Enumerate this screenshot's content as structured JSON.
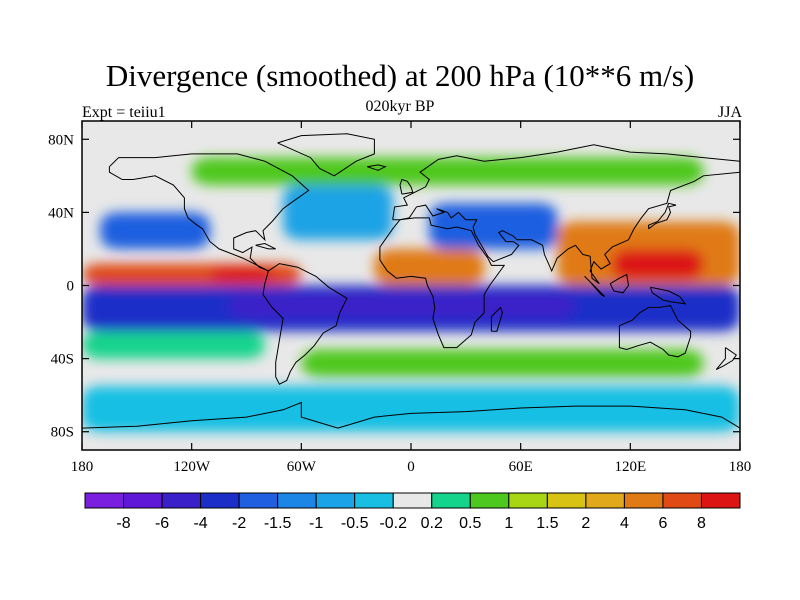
{
  "title": "Divergence (smoothed) at 200 hPa (10**6 m/s)",
  "subtitle": "020kyr BP",
  "left_label": "Expt = teiiu1",
  "right_label": "JJA",
  "map": {
    "lon_range": [
      -180,
      180
    ],
    "lat_range": [
      -90,
      90
    ],
    "background_color": "#e8e8e8",
    "coastlines": true
  },
  "axes": {
    "x_ticks": [
      {
        "value": -180,
        "label": "180"
      },
      {
        "value": -120,
        "label": "120W"
      },
      {
        "value": -60,
        "label": "60W"
      },
      {
        "value": 0,
        "label": "0"
      },
      {
        "value": 60,
        "label": "60E"
      },
      {
        "value": 120,
        "label": "120E"
      },
      {
        "value": 180,
        "label": "180"
      }
    ],
    "y_ticks": [
      {
        "value": 80,
        "label": "80N"
      },
      {
        "value": 40,
        "label": "40N"
      },
      {
        "value": 0,
        "label": "0"
      },
      {
        "value": -40,
        "label": "40S"
      },
      {
        "value": -80,
        "label": "80S"
      }
    ]
  },
  "colorbar": {
    "colors": [
      "#7a1fe0",
      "#6018d8",
      "#3a20c8",
      "#1c2ec8",
      "#1f5fe0",
      "#1c86e6",
      "#1aa3e6",
      "#19bfe3",
      "#e8e8e8",
      "#14d48c",
      "#4dc81e",
      "#a8d614",
      "#d8c214",
      "#e0a81a",
      "#e07a14",
      "#e04a14",
      "#dc1414"
    ],
    "labels": [
      "-8",
      "-6",
      "-4",
      "-2",
      "-1.5",
      "-1",
      "-0.5",
      "-0.2",
      "0.2",
      "0.5",
      "1",
      "1.5",
      "2",
      "4",
      "6",
      "8"
    ]
  },
  "field_regions": [
    {
      "name": "equatorial-negative-band",
      "color": "#1c2ec8",
      "lon": [
        -180,
        180
      ],
      "lat": [
        -25,
        0
      ]
    },
    {
      "name": "equatorial-core-negative",
      "color": "#3a20c8",
      "lon": [
        -100,
        90
      ],
      "lat": [
        -18,
        -4
      ]
    },
    {
      "name": "west-pacific-positive",
      "color": "#e07a14",
      "lon": [
        80,
        180
      ],
      "lat": [
        0,
        35
      ]
    },
    {
      "name": "west-pacific-core",
      "color": "#dc1414",
      "lon": [
        110,
        160
      ],
      "lat": [
        3,
        20
      ]
    },
    {
      "name": "east-pacific-positive",
      "color": "#e04a14",
      "lon": [
        -180,
        -60
      ],
      "lat": [
        0,
        12
      ]
    },
    {
      "name": "east-pacific-core",
      "color": "#dc1414",
      "lon": [
        -110,
        -75
      ],
      "lat": [
        2,
        10
      ]
    },
    {
      "name": "africa-positive",
      "color": "#e07a14",
      "lon": [
        -20,
        40
      ],
      "lat": [
        0,
        20
      ]
    },
    {
      "name": "north-pacific-negative",
      "color": "#1f5fe0",
      "lon": [
        -170,
        -110
      ],
      "lat": [
        20,
        40
      ]
    },
    {
      "name": "north-atlantic-negative",
      "color": "#1aa3e6",
      "lon": [
        -70,
        -10
      ],
      "lat": [
        25,
        55
      ]
    },
    {
      "name": "asia-negative",
      "color": "#1f5fe0",
      "lon": [
        10,
        80
      ],
      "lat": [
        20,
        45
      ]
    },
    {
      "name": "southern-ocean-light",
      "color": "#19bfe3",
      "lon": [
        -180,
        180
      ],
      "lat": [
        -80,
        -55
      ]
    },
    {
      "name": "southern-mid-green",
      "color": "#4dc81e",
      "lon": [
        -60,
        160
      ],
      "lat": [
        -50,
        -35
      ]
    },
    {
      "name": "south-pacific-green",
      "color": "#14d48c",
      "lon": [
        -180,
        -80
      ],
      "lat": [
        -40,
        -25
      ]
    },
    {
      "name": "north-green",
      "color": "#4dc81e",
      "lon": [
        -120,
        160
      ],
      "lat": [
        55,
        70
      ]
    }
  ]
}
